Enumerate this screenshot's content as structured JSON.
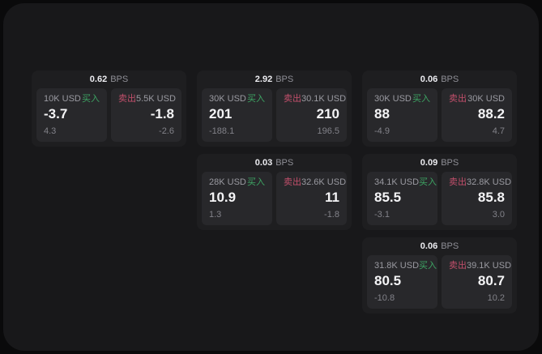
{
  "labels": {
    "bps_unit": "BPS",
    "buy": "买入",
    "sell": "卖出"
  },
  "colors": {
    "page_background": "#0a0a0b",
    "panel_background": "#18181a",
    "card_background": "#1e1e20",
    "tile_background": "#28282b",
    "buy_green": "#3da463",
    "sell_red": "#c24f6b",
    "value_white": "#f4f4f6",
    "muted_gray": "#9a9aa1"
  },
  "cards": [
    {
      "bps": "0.62",
      "buy": {
        "amount": "10K USD",
        "value": "-3.7",
        "delta": "4.3"
      },
      "sell": {
        "amount": "5.5K USD",
        "value": "-1.8",
        "delta": "-2.6"
      }
    },
    {
      "bps": "2.92",
      "buy": {
        "amount": "30K USD",
        "value": "201",
        "delta": "-188.1"
      },
      "sell": {
        "amount": "30.1K USD",
        "value": "210",
        "delta": "196.5"
      }
    },
    {
      "bps": "0.06",
      "buy": {
        "amount": "30K USD",
        "value": "88",
        "delta": "-4.9"
      },
      "sell": {
        "amount": "30K USD",
        "value": "88.2",
        "delta": "4.7"
      }
    },
    {
      "bps": "0.03",
      "buy": {
        "amount": "28K USD",
        "value": "10.9",
        "delta": "1.3"
      },
      "sell": {
        "amount": "32.6K USD",
        "value": "11",
        "delta": "-1.8"
      }
    },
    {
      "bps": "0.09",
      "buy": {
        "amount": "34.1K USD",
        "value": "85.5",
        "delta": "-3.1"
      },
      "sell": {
        "amount": "32.8K USD",
        "value": "85.8",
        "delta": "3.0"
      }
    },
    {
      "bps": "0.06",
      "buy": {
        "amount": "31.8K USD",
        "value": "80.5",
        "delta": "-10.8"
      },
      "sell": {
        "amount": "39.1K USD",
        "value": "80.7",
        "delta": "10.2"
      }
    }
  ]
}
